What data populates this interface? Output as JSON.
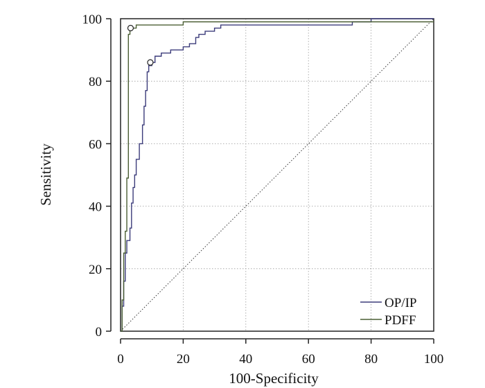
{
  "chart_data": {
    "type": "line",
    "title": "",
    "xlabel": "100-Specificity",
    "ylabel": "Sensitivity",
    "xlim": [
      0,
      100
    ],
    "ylim": [
      0,
      100
    ],
    "x_ticks": [
      0,
      20,
      40,
      60,
      80,
      100
    ],
    "y_ticks": [
      0,
      20,
      40,
      60,
      80,
      100
    ],
    "x_tick_labels": [
      "0",
      "20",
      "40",
      "60",
      "80",
      "100"
    ],
    "y_tick_labels": [
      "0",
      "20",
      "40",
      "60",
      "80",
      "100"
    ],
    "grid": true,
    "legend_position": "bottom-right",
    "diagonal_reference": true,
    "series": [
      {
        "name": "OP/IP",
        "color": "#3b3b7a",
        "x": [
          0,
          0.5,
          0.5,
          1,
          1,
          1.5,
          1.5,
          2,
          2,
          3,
          3,
          3.5,
          3.5,
          4,
          4,
          4.5,
          4.5,
          5,
          5,
          6,
          6,
          7,
          7,
          7.5,
          7.5,
          8,
          8,
          8.5,
          8.5,
          9,
          9,
          10,
          10,
          11,
          11,
          13,
          13,
          16,
          16,
          20,
          20,
          22,
          22,
          24,
          24,
          25,
          25,
          27,
          27,
          30,
          30,
          32,
          32,
          40,
          40,
          60,
          60,
          74,
          74,
          80,
          80,
          90,
          90,
          100
        ],
        "y": [
          0,
          0,
          8,
          8,
          16,
          16,
          25,
          25,
          29,
          29,
          33,
          33,
          41,
          41,
          46,
          46,
          50,
          50,
          55,
          55,
          60,
          60,
          66,
          66,
          72,
          72,
          77,
          77,
          83,
          83,
          85,
          85,
          86,
          86,
          88,
          88,
          89,
          89,
          90,
          90,
          91,
          91,
          92,
          92,
          94,
          94,
          95,
          95,
          96,
          96,
          97,
          97,
          98,
          98,
          98,
          98,
          98,
          98,
          99,
          99,
          100,
          100,
          100,
          100
        ],
        "marker": {
          "x": 9.5,
          "y": 86
        }
      },
      {
        "name": "PDFF",
        "color": "#4a5e33",
        "x": [
          0,
          0.5,
          0.5,
          1,
          1,
          1.5,
          1.5,
          2,
          2,
          2.5,
          2.5,
          3,
          3,
          5,
          5,
          10,
          10,
          20,
          20,
          100
        ],
        "y": [
          0,
          0,
          10,
          10,
          25,
          25,
          32,
          32,
          49,
          49,
          95,
          95,
          97,
          97,
          98,
          98,
          98,
          98,
          99,
          99
        ],
        "marker": {
          "x": 3.2,
          "y": 97
        }
      }
    ]
  }
}
